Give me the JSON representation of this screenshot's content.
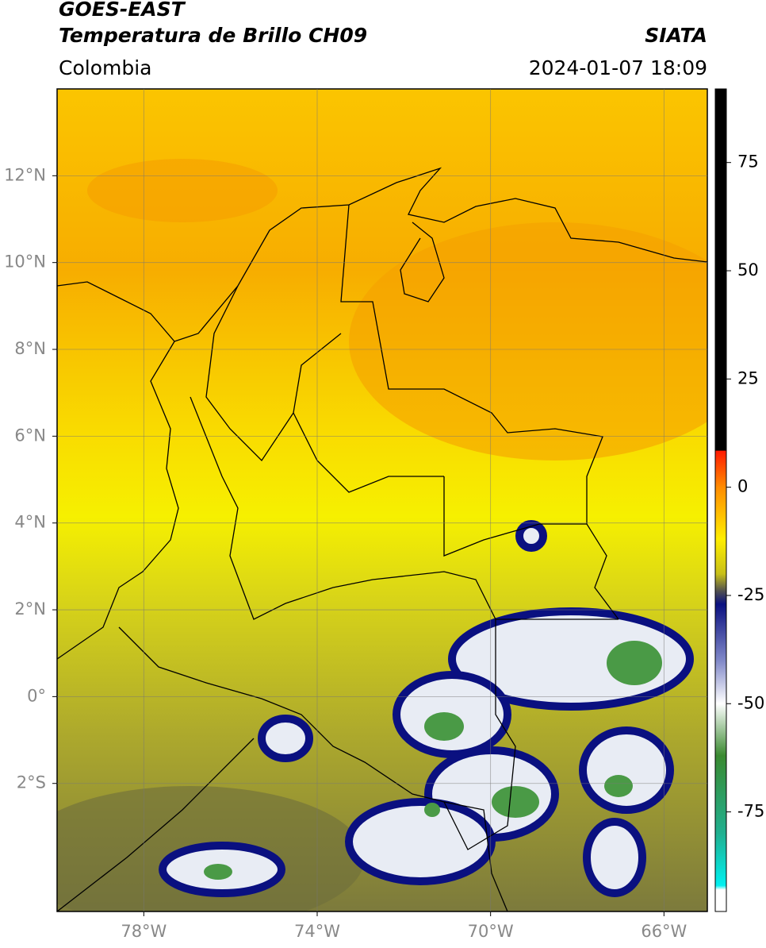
{
  "header": {
    "title": "GOES-EAST",
    "subtitle": "Temperatura de Brillo CH09",
    "source": "SIATA",
    "region": "Colombia",
    "datetime": "2024-01-07 18:09"
  },
  "map": {
    "xlim": [
      -80,
      -65
    ],
    "ylim": [
      -4.95,
      14
    ],
    "xticks": [
      {
        "value": -78,
        "label": "78°W"
      },
      {
        "value": -74,
        "label": "74°W"
      },
      {
        "value": -70,
        "label": "70°W"
      },
      {
        "value": -66,
        "label": "66°W"
      }
    ],
    "yticks": [
      {
        "value": 12,
        "label": "12°N"
      },
      {
        "value": 10,
        "label": "10°N"
      },
      {
        "value": 8,
        "label": "8°N"
      },
      {
        "value": 6,
        "label": "6°N"
      },
      {
        "value": 4,
        "label": "4°N"
      },
      {
        "value": 2,
        "label": "2°N"
      },
      {
        "value": 0,
        "label": "0°"
      },
      {
        "value": -2,
        "label": "2°S"
      }
    ],
    "grid": true
  },
  "colorbar": {
    "lim": [
      -98,
      92
    ],
    "ticks": [
      75,
      50,
      25,
      0,
      -25,
      -50,
      -75
    ],
    "stops": [
      {
        "value": 92,
        "color": "#000000"
      },
      {
        "value": 8.5,
        "color": "#000000"
      },
      {
        "value": 8.4,
        "color": "#ff1a00"
      },
      {
        "value": 0,
        "color": "#ff8c00"
      },
      {
        "value": -12,
        "color": "#ffee00"
      },
      {
        "value": -20,
        "color": "#c8c018"
      },
      {
        "value": -24,
        "color": "#505050"
      },
      {
        "value": -27,
        "color": "#0a1080"
      },
      {
        "value": -40,
        "color": "#8088c8"
      },
      {
        "value": -50,
        "color": "#ffffff"
      },
      {
        "value": -62,
        "color": "#3a8a30"
      },
      {
        "value": -80,
        "color": "#20b090"
      },
      {
        "value": -92,
        "color": "#00f0f0"
      },
      {
        "value": -93,
        "color": "#ffffff"
      },
      {
        "value": -98,
        "color": "#ffffff"
      }
    ]
  }
}
